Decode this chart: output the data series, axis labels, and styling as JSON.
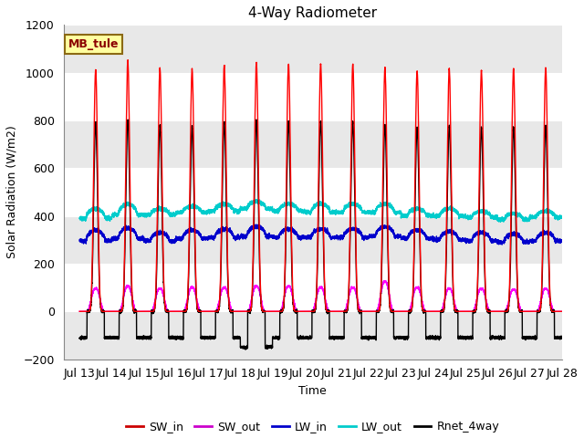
{
  "title": "4-Way Radiometer",
  "xlabel": "Time",
  "ylabel": "Solar Radiation (W/m2)",
  "ylim": [
    -200,
    1200
  ],
  "xlim_days": [
    12.5,
    28.0
  ],
  "xtick_days": [
    13,
    14,
    15,
    16,
    17,
    18,
    19,
    20,
    21,
    22,
    23,
    24,
    25,
    26,
    27,
    28
  ],
  "xtick_labels": [
    "Jul 13",
    "Jul 14",
    "Jul 15",
    "Jul 16",
    "Jul 17",
    "Jul 18",
    "Jul 19",
    "Jul 20",
    "Jul 21",
    "Jul 22",
    "Jul 23",
    "Jul 24",
    "Jul 25",
    "Jul 26",
    "Jul 27",
    "Jul 28"
  ],
  "figure_facecolor": "#ffffff",
  "axes_facecolor": "#ffffff",
  "band_color": "#e8e8e8",
  "legend_label": "MB_tule",
  "legend_box_facecolor": "#ffffa0",
  "legend_box_edgecolor": "#8B6914",
  "series_colors": {
    "SW_in": "#ff0000",
    "SW_out": "#ff00ff",
    "LW_in": "#0000cc",
    "LW_out": "#00cccc",
    "Rnet_4way": "#000000"
  },
  "series_labels": [
    "SW_in",
    "SW_out",
    "LW_in",
    "LW_out",
    "Rnet_4way"
  ],
  "series_legend_colors": [
    "#cc0000",
    "#cc00cc",
    "#0000cc",
    "#00cccc",
    "#000000"
  ],
  "num_days": 15,
  "start_day": 13,
  "day_peaks": {
    "SW_in_peaks": [
      1010,
      1050,
      1020,
      1015,
      1030,
      1040,
      1035,
      1035,
      1035,
      1020,
      1005,
      1015,
      1010,
      1015,
      1020
    ],
    "SW_out_peaks": [
      100,
      110,
      100,
      105,
      105,
      110,
      110,
      105,
      105,
      130,
      105,
      100,
      100,
      95,
      100
    ],
    "LW_out_day": [
      430,
      450,
      430,
      440,
      450,
      460,
      450,
      450,
      450,
      450,
      430,
      430,
      420,
      410,
      420
    ],
    "LW_out_night": [
      390,
      405,
      405,
      415,
      420,
      430,
      420,
      415,
      415,
      415,
      400,
      400,
      395,
      385,
      395
    ],
    "LW_in_day": [
      340,
      350,
      330,
      340,
      345,
      355,
      345,
      345,
      345,
      355,
      340,
      335,
      330,
      325,
      330
    ],
    "LW_in_night": [
      295,
      305,
      295,
      305,
      310,
      315,
      310,
      310,
      310,
      315,
      305,
      300,
      295,
      290,
      295
    ],
    "Rnet_peaks": [
      790,
      800,
      780,
      775,
      790,
      800,
      795,
      795,
      795,
      780,
      770,
      775,
      770,
      770,
      775
    ],
    "Rnet_nights": [
      -110,
      -110,
      -110,
      -110,
      -110,
      -150,
      -110,
      -110,
      -110,
      -110,
      -110,
      -110,
      -110,
      -110,
      -110
    ]
  }
}
